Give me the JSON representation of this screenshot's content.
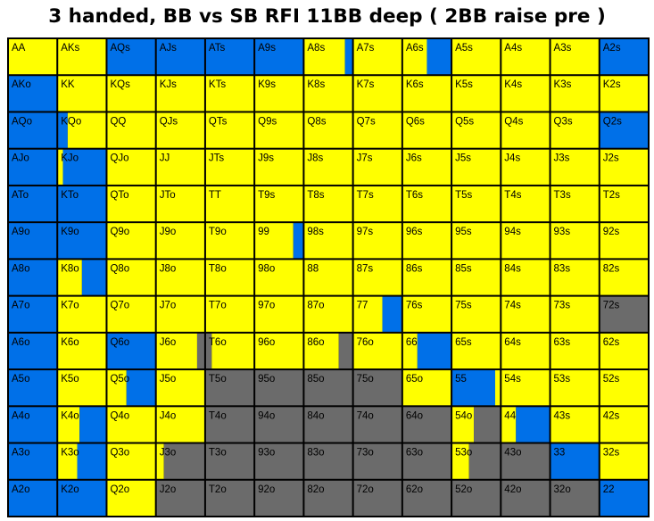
{
  "title": "3 handed, BB vs SB RFI 11BB deep ( 2BB raise pre )",
  "colors": {
    "call": "#ffff00",
    "raise": "#0070e8",
    "fold": "#6b6b6b",
    "border": "#000000",
    "text": "#000000"
  },
  "chart_data": {
    "type": "heatmap",
    "title": "3 handed, BB vs SB RFI 11BB deep ( 2BB raise pre )",
    "ranks": [
      "A",
      "K",
      "Q",
      "J",
      "T",
      "9",
      "8",
      "7",
      "6",
      "5",
      "4",
      "3",
      "2"
    ],
    "legend": {
      "Y": "yellow",
      "B": "blue",
      "G": "grey"
    },
    "labels": [
      [
        "AA",
        "AKs",
        "AQs",
        "AJs",
        "ATs",
        "A9s",
        "A8s",
        "A7s",
        "A6s",
        "A5s",
        "A4s",
        "A3s",
        "A2s"
      ],
      [
        "AKo",
        "KK",
        "KQs",
        "KJs",
        "KTs",
        "K9s",
        "K8s",
        "K7s",
        "K6s",
        "K5s",
        "K4s",
        "K3s",
        "K2s"
      ],
      [
        "AQo",
        "KQo",
        "QQ",
        "QJs",
        "QTs",
        "Q9s",
        "Q8s",
        "Q7s",
        "Q6s",
        "Q5s",
        "Q4s",
        "Q3s",
        "Q2s"
      ],
      [
        "AJo",
        "KJo",
        "QJo",
        "JJ",
        "JTs",
        "J9s",
        "J8s",
        "J7s",
        "J6s",
        "J5s",
        "J4s",
        "J3s",
        "J2s"
      ],
      [
        "ATo",
        "KTo",
        "QTo",
        "JTo",
        "TT",
        "T9s",
        "T8s",
        "T7s",
        "T6s",
        "T5s",
        "T4s",
        "T3s",
        "T2s"
      ],
      [
        "A9o",
        "K9o",
        "Q9o",
        "J9o",
        "T9o",
        "99",
        "98s",
        "97s",
        "96s",
        "95s",
        "94s",
        "93s",
        "92s"
      ],
      [
        "A8o",
        "K8o",
        "Q8o",
        "J8o",
        "T8o",
        "98o",
        "88",
        "87s",
        "86s",
        "85s",
        "84s",
        "83s",
        "82s"
      ],
      [
        "A7o",
        "K7o",
        "Q7o",
        "J7o",
        "T7o",
        "97o",
        "87o",
        "77",
        "76s",
        "75s",
        "74s",
        "73s",
        "72s"
      ],
      [
        "A6o",
        "K6o",
        "Q6o",
        "J6o",
        "T6o",
        "96o",
        "86o",
        "76o",
        "66",
        "65s",
        "64s",
        "63s",
        "62s"
      ],
      [
        "A5o",
        "K5o",
        "Q5o",
        "J5o",
        "T5o",
        "95o",
        "85o",
        "75o",
        "65o",
        "55",
        "54s",
        "53s",
        "52s"
      ],
      [
        "A4o",
        "K4o",
        "Q4o",
        "J4o",
        "T4o",
        "94o",
        "84o",
        "74o",
        "64o",
        "54o",
        "44",
        "43s",
        "42s"
      ],
      [
        "A3o",
        "K3o",
        "Q3o",
        "J3o",
        "T3o",
        "93o",
        "83o",
        "73o",
        "63o",
        "53o",
        "43o",
        "33",
        "32s"
      ],
      [
        "A2o",
        "K2o",
        "Q2o",
        "J2o",
        "T2o",
        "92o",
        "82o",
        "72o",
        "62o",
        "52o",
        "42o",
        "32o",
        "22"
      ]
    ],
    "cells": [
      [
        [
          [
            "Y",
            1
          ]
        ],
        [
          [
            "Y",
            1
          ]
        ],
        [
          [
            "B",
            1
          ]
        ],
        [
          [
            "B",
            1
          ]
        ],
        [
          [
            "B",
            1
          ]
        ],
        [
          [
            "B",
            1
          ]
        ],
        [
          [
            "Y",
            0.85
          ],
          [
            "B",
            0.15
          ]
        ],
        [
          [
            "Y",
            1
          ]
        ],
        [
          [
            "Y",
            0.5
          ],
          [
            "B",
            0.5
          ]
        ],
        [
          [
            "Y",
            1
          ]
        ],
        [
          [
            "Y",
            1
          ]
        ],
        [
          [
            "Y",
            1
          ]
        ],
        [
          [
            "B",
            1
          ]
        ]
      ],
      [
        [
          [
            "B",
            1
          ]
        ],
        [
          [
            "Y",
            1
          ]
        ],
        [
          [
            "Y",
            1
          ]
        ],
        [
          [
            "Y",
            1
          ]
        ],
        [
          [
            "Y",
            1
          ]
        ],
        [
          [
            "Y",
            1
          ]
        ],
        [
          [
            "Y",
            1
          ]
        ],
        [
          [
            "Y",
            1
          ]
        ],
        [
          [
            "Y",
            1
          ]
        ],
        [
          [
            "Y",
            1
          ]
        ],
        [
          [
            "Y",
            1
          ]
        ],
        [
          [
            "Y",
            1
          ]
        ],
        [
          [
            "Y",
            1
          ]
        ]
      ],
      [
        [
          [
            "B",
            1
          ]
        ],
        [
          [
            "B",
            0.2
          ],
          [
            "Y",
            0.8
          ]
        ],
        [
          [
            "Y",
            1
          ]
        ],
        [
          [
            "Y",
            1
          ]
        ],
        [
          [
            "Y",
            1
          ]
        ],
        [
          [
            "Y",
            1
          ]
        ],
        [
          [
            "Y",
            1
          ]
        ],
        [
          [
            "Y",
            1
          ]
        ],
        [
          [
            "Y",
            1
          ]
        ],
        [
          [
            "Y",
            1
          ]
        ],
        [
          [
            "Y",
            1
          ]
        ],
        [
          [
            "Y",
            1
          ]
        ],
        [
          [
            "B",
            1
          ]
        ]
      ],
      [
        [
          [
            "B",
            1
          ]
        ],
        [
          [
            "Y",
            0.1
          ],
          [
            "B",
            0.9
          ]
        ],
        [
          [
            "Y",
            1
          ]
        ],
        [
          [
            "Y",
            1
          ]
        ],
        [
          [
            "Y",
            1
          ]
        ],
        [
          [
            "Y",
            1
          ]
        ],
        [
          [
            "Y",
            1
          ]
        ],
        [
          [
            "Y",
            1
          ]
        ],
        [
          [
            "Y",
            1
          ]
        ],
        [
          [
            "Y",
            1
          ]
        ],
        [
          [
            "Y",
            1
          ]
        ],
        [
          [
            "Y",
            1
          ]
        ],
        [
          [
            "Y",
            1
          ]
        ]
      ],
      [
        [
          [
            "B",
            1
          ]
        ],
        [
          [
            "B",
            1
          ]
        ],
        [
          [
            "Y",
            1
          ]
        ],
        [
          [
            "Y",
            1
          ]
        ],
        [
          [
            "Y",
            1
          ]
        ],
        [
          [
            "Y",
            1
          ]
        ],
        [
          [
            "Y",
            1
          ]
        ],
        [
          [
            "Y",
            1
          ]
        ],
        [
          [
            "Y",
            1
          ]
        ],
        [
          [
            "Y",
            1
          ]
        ],
        [
          [
            "Y",
            1
          ]
        ],
        [
          [
            "Y",
            1
          ]
        ],
        [
          [
            "Y",
            1
          ]
        ]
      ],
      [
        [
          [
            "B",
            1
          ]
        ],
        [
          [
            "B",
            1
          ]
        ],
        [
          [
            "Y",
            1
          ]
        ],
        [
          [
            "Y",
            1
          ]
        ],
        [
          [
            "Y",
            1
          ]
        ],
        [
          [
            "Y",
            0.8
          ],
          [
            "B",
            0.2
          ]
        ],
        [
          [
            "Y",
            1
          ]
        ],
        [
          [
            "Y",
            1
          ]
        ],
        [
          [
            "Y",
            1
          ]
        ],
        [
          [
            "Y",
            1
          ]
        ],
        [
          [
            "Y",
            1
          ]
        ],
        [
          [
            "Y",
            1
          ]
        ],
        [
          [
            "Y",
            1
          ]
        ]
      ],
      [
        [
          [
            "B",
            1
          ]
        ],
        [
          [
            "Y",
            0.5
          ],
          [
            "B",
            0.5
          ]
        ],
        [
          [
            "Y",
            1
          ]
        ],
        [
          [
            "Y",
            1
          ]
        ],
        [
          [
            "Y",
            1
          ]
        ],
        [
          [
            "Y",
            1
          ]
        ],
        [
          [
            "Y",
            1
          ]
        ],
        [
          [
            "Y",
            1
          ]
        ],
        [
          [
            "Y",
            1
          ]
        ],
        [
          [
            "Y",
            1
          ]
        ],
        [
          [
            "Y",
            1
          ]
        ],
        [
          [
            "Y",
            1
          ]
        ],
        [
          [
            "Y",
            1
          ]
        ]
      ],
      [
        [
          [
            "B",
            1
          ]
        ],
        [
          [
            "Y",
            1
          ]
        ],
        [
          [
            "Y",
            1
          ]
        ],
        [
          [
            "Y",
            1
          ]
        ],
        [
          [
            "Y",
            1
          ]
        ],
        [
          [
            "Y",
            1
          ]
        ],
        [
          [
            "Y",
            1
          ]
        ],
        [
          [
            "Y",
            0.6
          ],
          [
            "B",
            0.4
          ]
        ],
        [
          [
            "Y",
            1
          ]
        ],
        [
          [
            "Y",
            1
          ]
        ],
        [
          [
            "Y",
            1
          ]
        ],
        [
          [
            "Y",
            1
          ]
        ],
        [
          [
            "G",
            1
          ]
        ]
      ],
      [
        [
          [
            "B",
            1
          ]
        ],
        [
          [
            "Y",
            1
          ]
        ],
        [
          [
            "B",
            1
          ]
        ],
        [
          [
            "Y",
            0.85
          ],
          [
            "G",
            0.15
          ]
        ],
        [
          [
            "G",
            0.12
          ],
          [
            "Y",
            0.88
          ]
        ],
        [
          [
            "Y",
            1
          ]
        ],
        [
          [
            "Y",
            0.72
          ],
          [
            "G",
            0.28
          ]
        ],
        [
          [
            "Y",
            1
          ]
        ],
        [
          [
            "Y",
            0.3
          ],
          [
            "B",
            0.7
          ]
        ],
        [
          [
            "Y",
            1
          ]
        ],
        [
          [
            "Y",
            1
          ]
        ],
        [
          [
            "Y",
            1
          ]
        ],
        [
          [
            "Y",
            1
          ]
        ]
      ],
      [
        [
          [
            "B",
            1
          ]
        ],
        [
          [
            "Y",
            1
          ]
        ],
        [
          [
            "Y",
            0.4
          ],
          [
            "B",
            0.6
          ]
        ],
        [
          [
            "Y",
            1
          ]
        ],
        [
          [
            "G",
            1
          ]
        ],
        [
          [
            "G",
            1
          ]
        ],
        [
          [
            "G",
            1
          ]
        ],
        [
          [
            "G",
            1
          ]
        ],
        [
          [
            "Y",
            1
          ]
        ],
        [
          [
            "B",
            0.9
          ],
          [
            "Y",
            0.1
          ]
        ],
        [
          [
            "Y",
            1
          ]
        ],
        [
          [
            "Y",
            1
          ]
        ],
        [
          [
            "Y",
            1
          ]
        ]
      ],
      [
        [
          [
            "B",
            1
          ]
        ],
        [
          [
            "Y",
            0.45
          ],
          [
            "B",
            0.55
          ]
        ],
        [
          [
            "Y",
            1
          ]
        ],
        [
          [
            "Y",
            1
          ]
        ],
        [
          [
            "G",
            1
          ]
        ],
        [
          [
            "G",
            1
          ]
        ],
        [
          [
            "G",
            1
          ]
        ],
        [
          [
            "G",
            1
          ]
        ],
        [
          [
            "G",
            1
          ]
        ],
        [
          [
            "Y",
            0.45
          ],
          [
            "G",
            0.55
          ]
        ],
        [
          [
            "Y",
            0.3
          ],
          [
            "B",
            0.7
          ]
        ],
        [
          [
            "Y",
            1
          ]
        ],
        [
          [
            "Y",
            1
          ]
        ]
      ],
      [
        [
          [
            "B",
            1
          ]
        ],
        [
          [
            "Y",
            0.4
          ],
          [
            "B",
            0.6
          ]
        ],
        [
          [
            "Y",
            1
          ]
        ],
        [
          [
            "Y",
            0.15
          ],
          [
            "G",
            0.85
          ]
        ],
        [
          [
            "G",
            1
          ]
        ],
        [
          [
            "G",
            1
          ]
        ],
        [
          [
            "G",
            1
          ]
        ],
        [
          [
            "G",
            1
          ]
        ],
        [
          [
            "G",
            1
          ]
        ],
        [
          [
            "Y",
            0.35
          ],
          [
            "G",
            0.65
          ]
        ],
        [
          [
            "G",
            1
          ]
        ],
        [
          [
            "B",
            1
          ]
        ],
        [
          [
            "Y",
            1
          ]
        ]
      ],
      [
        [
          [
            "B",
            1
          ]
        ],
        [
          [
            "B",
            1
          ]
        ],
        [
          [
            "Y",
            1
          ]
        ],
        [
          [
            "G",
            1
          ]
        ],
        [
          [
            "G",
            1
          ]
        ],
        [
          [
            "G",
            1
          ]
        ],
        [
          [
            "G",
            1
          ]
        ],
        [
          [
            "G",
            1
          ]
        ],
        [
          [
            "G",
            1
          ]
        ],
        [
          [
            "G",
            1
          ]
        ],
        [
          [
            "G",
            1
          ]
        ],
        [
          [
            "G",
            1
          ]
        ],
        [
          [
            "B",
            1
          ]
        ]
      ]
    ]
  }
}
